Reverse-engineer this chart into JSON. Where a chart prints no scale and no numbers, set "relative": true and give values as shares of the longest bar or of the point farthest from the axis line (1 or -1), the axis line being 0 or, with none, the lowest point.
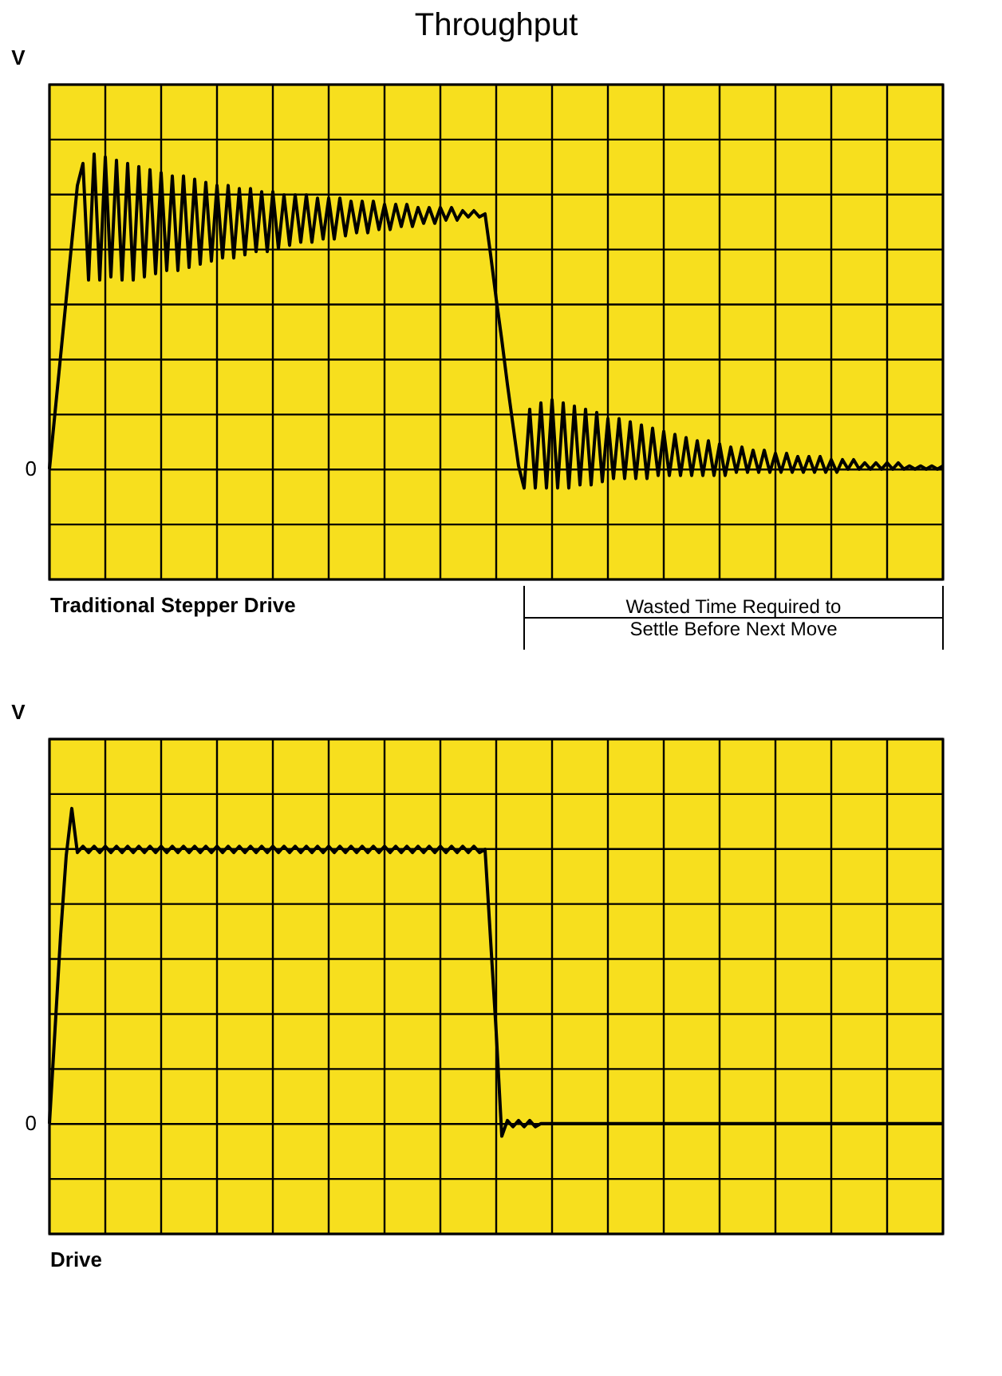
{
  "chart_data": [
    {
      "type": "line",
      "title": "Throughput",
      "relative": true,
      "ylabel": "V",
      "xlabel": "Traditional Stepper Drive",
      "grid": true,
      "annotations": [
        "0",
        "Wasted Time Required to\nSettle Before Next Move"
      ],
      "categories": [
        null,
        null,
        null,
        null,
        null,
        null,
        null,
        null,
        null,
        null,
        null,
        null,
        null,
        null,
        null,
        null,
        null,
        null,
        null,
        null,
        null,
        null,
        null,
        null,
        null,
        null,
        null,
        null,
        null,
        null,
        null,
        null,
        null,
        null,
        null,
        null,
        null,
        null,
        null,
        null,
        null,
        null,
        null,
        null,
        null,
        null,
        null,
        null,
        null,
        null,
        null,
        null,
        null,
        null,
        null,
        null,
        null,
        null,
        null,
        null,
        null,
        null,
        null,
        null,
        null,
        null,
        null,
        null,
        null,
        null,
        null,
        null,
        null,
        null,
        null,
        null,
        null,
        null,
        null,
        null,
        null,
        null,
        null,
        null,
        null,
        null,
        null,
        null,
        null,
        null,
        null,
        null,
        null,
        null,
        null,
        null,
        null,
        null,
        null,
        null,
        null,
        null,
        null,
        null,
        null,
        null,
        null,
        null,
        null,
        null,
        null,
        null,
        null,
        null,
        null,
        null,
        null,
        null,
        null,
        null,
        null,
        null,
        null,
        null,
        null,
        null,
        null,
        null,
        null,
        null,
        null,
        null,
        null,
        null,
        null,
        null,
        null,
        null,
        null,
        null,
        null,
        null,
        null,
        null,
        null,
        null,
        null,
        null,
        null,
        null,
        null,
        null,
        null,
        null,
        null,
        null,
        null,
        null,
        null,
        null,
        null
      ],
      "series": [
        {
          "color": "#000000",
          "values": [
            0,
            0.18,
            0.36,
            0.54,
            0.72,
            0.9,
            0.97,
            0.6,
            1.0,
            0.6,
            0.99,
            0.61,
            0.98,
            0.6,
            0.97,
            0.6,
            0.96,
            0.61,
            0.95,
            0.62,
            0.94,
            0.63,
            0.93,
            0.63,
            0.93,
            0.64,
            0.92,
            0.65,
            0.91,
            0.66,
            0.9,
            0.67,
            0.9,
            0.67,
            0.89,
            0.68,
            0.89,
            0.69,
            0.88,
            0.69,
            0.88,
            0.7,
            0.87,
            0.71,
            0.87,
            0.72,
            0.87,
            0.72,
            0.86,
            0.73,
            0.86,
            0.73,
            0.86,
            0.74,
            0.85,
            0.75,
            0.85,
            0.75,
            0.85,
            0.76,
            0.84,
            0.76,
            0.84,
            0.77,
            0.84,
            0.77,
            0.83,
            0.78,
            0.83,
            0.78,
            0.83,
            0.79,
            0.83,
            0.79,
            0.82,
            0.8,
            0.82,
            0.8,
            0.81,
            0.68,
            0.54,
            0.41,
            0.27,
            0.14,
            0.01,
            -0.06,
            0.19,
            -0.06,
            0.21,
            -0.06,
            0.22,
            -0.06,
            0.21,
            -0.06,
            0.2,
            -0.05,
            0.19,
            -0.05,
            0.18,
            -0.04,
            0.16,
            -0.03,
            0.16,
            -0.03,
            0.15,
            -0.03,
            0.14,
            -0.03,
            0.13,
            -0.02,
            0.12,
            -0.02,
            0.11,
            -0.02,
            0.1,
            -0.02,
            0.09,
            -0.02,
            0.09,
            -0.02,
            0.08,
            -0.02,
            0.07,
            -0.01,
            0.07,
            -0.01,
            0.06,
            -0.01,
            0.06,
            -0.01,
            0.05,
            -0.01,
            0.05,
            -0.01,
            0.04,
            -0.01,
            0.04,
            -0.01,
            0.04,
            -0.01,
            0.03,
            -0.01,
            0.03,
            0,
            0.03,
            0,
            0.02,
            0,
            0.02,
            0,
            0.02,
            0,
            0.02,
            0,
            0.01,
            0,
            0.01,
            0,
            0.01,
            0,
            0.01
          ]
        }
      ]
    },
    {
      "type": "line",
      "relative": true,
      "ylabel": "V",
      "xlabel": "Drive",
      "grid": true,
      "annotations": [
        "0"
      ],
      "categories": [
        null,
        null,
        null,
        null,
        null,
        null,
        null,
        null,
        null,
        null,
        null,
        null,
        null,
        null,
        null,
        null,
        null,
        null,
        null,
        null,
        null,
        null,
        null,
        null,
        null,
        null,
        null,
        null,
        null,
        null,
        null,
        null,
        null,
        null,
        null,
        null,
        null,
        null,
        null,
        null,
        null,
        null,
        null,
        null,
        null,
        null,
        null,
        null,
        null,
        null,
        null,
        null,
        null,
        null,
        null,
        null,
        null,
        null,
        null,
        null,
        null,
        null,
        null,
        null,
        null,
        null,
        null,
        null,
        null,
        null,
        null,
        null,
        null,
        null,
        null,
        null,
        null,
        null,
        null,
        null,
        null,
        null,
        null,
        null,
        null,
        null,
        null,
        null,
        null,
        null,
        null,
        null,
        null,
        null,
        null,
        null,
        null,
        null,
        null,
        null,
        null,
        null,
        null,
        null,
        null,
        null,
        null,
        null,
        null,
        null,
        null,
        null,
        null,
        null,
        null,
        null,
        null,
        null,
        null,
        null,
        null,
        null,
        null,
        null,
        null,
        null,
        null,
        null,
        null,
        null,
        null,
        null,
        null,
        null,
        null,
        null,
        null,
        null,
        null,
        null,
        null,
        null,
        null,
        null,
        null,
        null,
        null,
        null,
        null,
        null,
        null,
        null,
        null,
        null,
        null,
        null,
        null,
        null,
        null,
        null,
        null
      ],
      "series": [
        {
          "color": "#000000",
          "values": [
            0,
            0.3,
            0.6,
            0.85,
            1.0,
            0.86,
            0.88,
            0.86,
            0.88,
            0.86,
            0.88,
            0.86,
            0.88,
            0.86,
            0.88,
            0.86,
            0.88,
            0.86,
            0.88,
            0.86,
            0.88,
            0.86,
            0.88,
            0.86,
            0.88,
            0.86,
            0.88,
            0.86,
            0.88,
            0.86,
            0.88,
            0.86,
            0.88,
            0.86,
            0.88,
            0.86,
            0.88,
            0.86,
            0.88,
            0.86,
            0.88,
            0.86,
            0.88,
            0.86,
            0.88,
            0.86,
            0.88,
            0.86,
            0.88,
            0.86,
            0.88,
            0.86,
            0.88,
            0.86,
            0.88,
            0.86,
            0.88,
            0.86,
            0.88,
            0.86,
            0.88,
            0.86,
            0.88,
            0.86,
            0.88,
            0.86,
            0.88,
            0.86,
            0.88,
            0.86,
            0.88,
            0.86,
            0.88,
            0.86,
            0.88,
            0.86,
            0.88,
            0.86,
            0.87,
            0.58,
            0.29,
            -0.04,
            0.01,
            -0.01,
            0.01,
            -0.01,
            0.01,
            -0.01,
            0,
            0,
            0,
            0,
            0,
            0,
            0,
            0,
            0,
            0,
            0,
            0,
            0,
            0,
            0,
            0,
            0,
            0,
            0,
            0,
            0,
            0,
            0,
            0,
            0,
            0,
            0,
            0,
            0,
            0,
            0,
            0,
            0,
            0,
            0,
            0,
            0,
            0,
            0,
            0,
            0,
            0,
            0,
            0,
            0,
            0,
            0,
            0,
            0,
            0,
            0,
            0,
            0,
            0,
            0,
            0,
            0,
            0,
            0,
            0,
            0,
            0,
            0,
            0,
            0,
            0,
            0,
            0,
            0,
            0,
            0,
            0,
            0
          ]
        }
      ]
    }
  ]
}
